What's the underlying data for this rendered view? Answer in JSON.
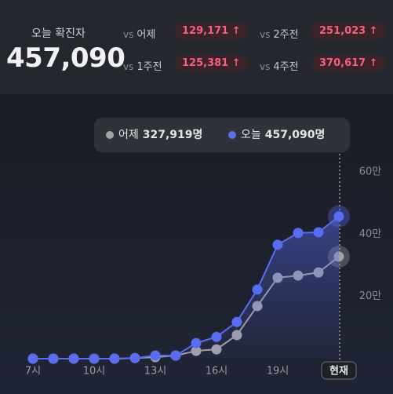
{
  "header": {
    "label": "오늘 확진자",
    "total": "457,090",
    "comparisons": [
      {
        "prefix": "vs",
        "label": "어제",
        "value": "129,171 ↑"
      },
      {
        "prefix": "vs",
        "label": "2주전",
        "value": "251,023 ↑"
      },
      {
        "prefix": "vs",
        "label": "1주전",
        "value": "125,381 ↑"
      },
      {
        "prefix": "vs",
        "label": "4주전",
        "value": "370,617 ↑"
      }
    ]
  },
  "chart_data": {
    "type": "line",
    "categories": [
      "7시",
      null,
      null,
      "10시",
      null,
      null,
      "13시",
      null,
      null,
      "16시",
      null,
      null,
      "19시",
      null,
      null,
      "현재"
    ],
    "series": [
      {
        "name": "어제",
        "color": "#a3a3a6",
        "area": false,
        "values": [
          0,
          0,
          0,
          0,
          0,
          2000,
          5000,
          10000,
          25000,
          30000,
          76000,
          169000,
          260000,
          267000,
          277000,
          327919
        ],
        "value_labels": [
          null,
          null,
          null,
          null,
          null,
          null,
          null,
          null,
          null,
          null,
          null,
          null,
          null,
          null,
          null,
          "327,919명"
        ]
      },
      {
        "name": "오늘",
        "color": "#5a6cf0",
        "area": true,
        "values": [
          0,
          0,
          0,
          0,
          0,
          2000,
          10000,
          10000,
          50000,
          70000,
          118000,
          222000,
          366000,
          404000,
          406000,
          457090
        ],
        "value_labels": [
          null,
          null,
          null,
          null,
          null,
          null,
          null,
          null,
          null,
          null,
          null,
          null,
          null,
          null,
          null,
          "457,090명"
        ]
      }
    ],
    "ylim": [
      0,
      600000
    ],
    "yticks": [
      {
        "value": 200000,
        "label": "20만"
      },
      {
        "value": 400000,
        "label": "40만"
      },
      {
        "value": 600000,
        "label": "60만"
      }
    ],
    "grid": false
  }
}
